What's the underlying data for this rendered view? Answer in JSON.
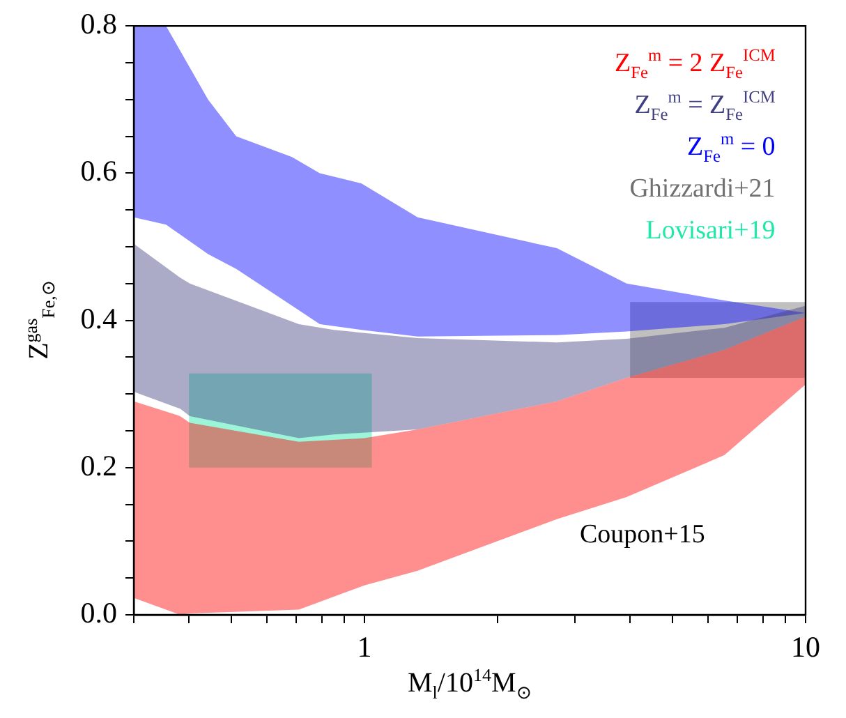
{
  "chart_data": {
    "type": "area",
    "xlabel": "M$_{l}$/10$^{14}$M$_{⊙}$",
    "ylabel": "Z$^{gas}$$_{Fe,⊙}$",
    "annotations": [
      "Coupon+15"
    ],
    "log": "x",
    "xlim": [
      0.3,
      10
    ],
    "ylim": [
      0,
      0.8
    ],
    "xticks": [
      {
        "value": 0.3,
        "label": null
      },
      {
        "value": 0.4,
        "label": null
      },
      {
        "value": 0.5,
        "label": null
      },
      {
        "value": 0.6,
        "label": null
      },
      {
        "value": 0.7,
        "label": null
      },
      {
        "value": 0.8,
        "label": null
      },
      {
        "value": 0.9,
        "label": null
      },
      1,
      {
        "value": 2,
        "label": null
      },
      {
        "value": 3,
        "label": null
      },
      {
        "value": 4,
        "label": null
      },
      {
        "value": 5,
        "label": null
      },
      {
        "value": 6,
        "label": null
      },
      {
        "value": 7,
        "label": null
      },
      {
        "value": 8,
        "label": null
      },
      {
        "value": 9,
        "label": null
      },
      10
    ],
    "yticks": [
      {
        "value": 0,
        "label": "0.0"
      },
      {
        "value": 0.05,
        "label": null
      },
      {
        "value": 0.1,
        "label": null
      },
      {
        "value": 0.15,
        "label": null
      },
      0.2,
      {
        "value": 0.25,
        "label": null
      },
      {
        "value": 0.3,
        "label": null
      },
      {
        "value": 0.35,
        "label": null
      },
      0.4,
      {
        "value": 0.45,
        "label": null
      },
      {
        "value": 0.5,
        "label": null
      },
      {
        "value": 0.55,
        "label": null
      },
      0.6,
      {
        "value": 0.65,
        "label": null
      },
      {
        "value": 0.7,
        "label": null
      },
      {
        "value": 0.75,
        "label": null
      },
      0.8
    ],
    "grid": false,
    "series": [
      {
        "name": "Z$_{Fe}$$^{m}$ = 2 Z$_{Fe}$$^{ICM}$",
        "color": "#ff0000",
        "x": [
          0.3,
          0.382,
          0.402,
          0.71,
          1,
          1.32,
          2.73,
          3.93,
          6.55,
          10
        ],
        "values": [
          null,
          null,
          null,
          null,
          null,
          null,
          null,
          null,
          null,
          null
        ],
        "lower": [
          0.023,
          0.0,
          0.002,
          0.007,
          0.04,
          0.06,
          0.13,
          0.16,
          0.217,
          0.313
        ],
        "upper": [
          0.29,
          0.27,
          0.261,
          0.235,
          0.24,
          0.252,
          0.29,
          0.322,
          0.36,
          0.405
        ]
      },
      {
        "name": "Z$_{Fe}$$^{m}$ = Z$_{Fe}$$^{ICM}$",
        "color": "#404080",
        "x": [
          0.3,
          0.382,
          0.402,
          0.71,
          0.852,
          1.32,
          2.73,
          3.93,
          6.55,
          10
        ],
        "values": [
          null,
          null,
          null,
          null,
          null,
          null,
          null,
          null,
          null,
          null
        ],
        "lower": [
          0.303,
          0.28,
          0.27,
          0.24,
          0.245,
          0.252,
          0.29,
          0.322,
          0.36,
          0.405
        ],
        "upper": [
          0.504,
          0.458,
          0.45,
          0.395,
          0.387,
          0.376,
          0.37,
          0.375,
          0.39,
          0.42
        ]
      },
      {
        "name": "Z$_{Fe}$$^{m}$ = 0",
        "color": "#0000ff",
        "x": [
          0.3,
          0.355,
          0.442,
          0.512,
          0.685,
          0.792,
          0.985,
          1.32,
          2.73,
          3.93,
          6.55,
          10
        ],
        "values": [
          null,
          null,
          null,
          null,
          null,
          null,
          null,
          null,
          null,
          null,
          null,
          null
        ],
        "lower": [
          0.54,
          0.53,
          0.49,
          0.47,
          0.42,
          0.395,
          0.387,
          0.378,
          0.38,
          0.385,
          0.395,
          0.41
        ],
        "upper": [
          0.8,
          0.8,
          0.7,
          0.65,
          0.622,
          0.6,
          0.586,
          0.54,
          0.498,
          0.45,
          0.427,
          0.41
        ]
      },
      {
        "name": "Ghizzardi+21",
        "color": "#707070",
        "x": [
          4,
          10
        ],
        "values": [
          null,
          null
        ],
        "lower": [
          0.322,
          0.322
        ],
        "upper": [
          0.425,
          0.425
        ]
      },
      {
        "name": "Lovisari+19",
        "color": "#20e8a8",
        "x": [
          0.4,
          1.04
        ],
        "values": [
          null,
          null
        ],
        "lower": [
          0.2,
          0.2
        ],
        "upper": [
          0.328,
          0.328
        ]
      }
    ]
  }
}
